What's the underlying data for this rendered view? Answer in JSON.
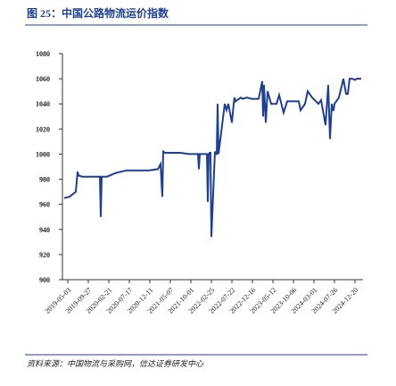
{
  "chart_data": {
    "type": "line",
    "title": "图 25：中国公路物流运价指数",
    "source": "资料来源：中国物流与采购网，信达证券研发中心",
    "x": [
      0,
      6,
      13,
      15,
      16,
      20,
      30,
      40,
      41,
      42,
      48,
      58,
      70,
      80,
      95,
      105,
      108,
      110,
      111,
      113,
      116,
      130,
      140,
      150,
      151,
      152,
      153,
      160,
      161,
      162,
      163,
      164,
      165,
      169,
      170,
      171,
      172,
      173,
      180,
      182,
      184,
      188,
      190,
      191,
      192,
      198,
      200,
      205,
      210,
      218,
      222,
      223,
      224,
      226,
      228,
      232,
      238,
      241,
      246,
      250,
      260,
      263,
      265,
      270,
      273,
      278,
      285,
      288,
      293,
      296,
      298,
      300,
      301,
      302,
      303,
      308,
      313,
      316,
      318,
      320,
      323,
      326,
      328,
      333
    ],
    "series": [
      {
        "name": "中国公路物流运价指数",
        "color": "#1f3f8f",
        "values": [
          965,
          966,
          970,
          986,
          983,
          982,
          982,
          982,
          950,
          982,
          982,
          985,
          987,
          987,
          987,
          988,
          992,
          966,
          1002,
          1001,
          1001,
          1001,
          1000,
          1000,
          988,
          1000,
          1000,
          1000,
          962,
          1000,
          1001,
          1001,
          934,
          1002,
          1000,
          1000,
          1040,
          1000,
          1040,
          1035,
          1040,
          1025,
          1040,
          1045,
          1042,
          1045,
          1044,
          1045,
          1044,
          1044,
          1058,
          1030,
          1055,
          1025,
          1050,
          1040,
          1040,
          1047,
          1033,
          1042,
          1042,
          1042,
          1035,
          1040,
          1050,
          1045,
          1040,
          1043,
          1023,
          1055,
          1012,
          1040,
          1035,
          1035,
          1040,
          1045,
          1060,
          1048,
          1048,
          1060,
          1060,
          1059,
          1060,
          1060
        ]
      }
    ],
    "xlim": [
      -2,
      335
    ],
    "ylim": [
      900,
      1080
    ],
    "yticks": [
      900,
      920,
      940,
      960,
      980,
      1000,
      1020,
      1040,
      1060,
      1080
    ],
    "xticks": [
      {
        "value": 4,
        "label": "2019-05-03"
      },
      {
        "value": 27,
        "label": "2019-09-27"
      },
      {
        "value": 50,
        "label": "2020-02-21"
      },
      {
        "value": 73,
        "label": "2020-07-17"
      },
      {
        "value": 96,
        "label": "2020-12-11"
      },
      {
        "value": 119,
        "label": "2021-05-07"
      },
      {
        "value": 142,
        "label": "2021-10-01"
      },
      {
        "value": 165,
        "label": "2022-02-25"
      },
      {
        "value": 188,
        "label": "2022-07-22"
      },
      {
        "value": 211,
        "label": "2022-12-16"
      },
      {
        "value": 234,
        "label": "2023-05-12"
      },
      {
        "value": 257,
        "label": "2023-10-06"
      },
      {
        "value": 280,
        "label": "2024-03-01"
      },
      {
        "value": 303,
        "label": "2024-07-26"
      },
      {
        "value": 326,
        "label": "2024-12-20"
      }
    ]
  }
}
